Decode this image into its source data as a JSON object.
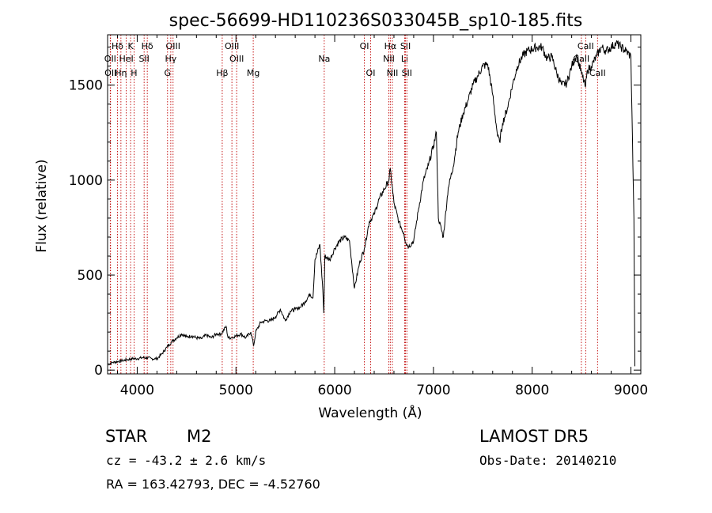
{
  "chart_data": {
    "type": "line",
    "title": "spec-56699-HD110236S033045B_sp10-185.fits",
    "xlabel": "Wavelength (Å)",
    "ylabel": "Flux (relative)",
    "xlim": [
      3700,
      9100
    ],
    "ylim": [
      -20,
      1765
    ],
    "xticks": [
      4000,
      5000,
      6000,
      7000,
      8000,
      9000
    ],
    "yticks": [
      0,
      500,
      1000,
      1500
    ],
    "grid": false,
    "series": [
      {
        "x": [
          3700,
          3750,
          3800,
          3850,
          3900,
          3950,
          4000,
          4050,
          4100,
          4150,
          4200,
          4250,
          4300,
          4350,
          4400,
          4450,
          4500,
          4550,
          4600,
          4650,
          4700,
          4750,
          4800,
          4850,
          4900,
          4920,
          4950,
          5000,
          5050,
          5100,
          5150,
          5180,
          5200,
          5250,
          5300,
          5350,
          5400,
          5450,
          5500,
          5550,
          5600,
          5650,
          5700,
          5750,
          5780,
          5800,
          5850,
          5880,
          5890,
          5900,
          5950,
          6000,
          6050,
          6100,
          6150,
          6200,
          6250,
          6300,
          6350,
          6400,
          6450,
          6500,
          6550,
          6563,
          6600,
          6650,
          6700,
          6720,
          6750,
          6800,
          6850,
          6900,
          6950,
          7000,
          7030,
          7050,
          7100,
          7150,
          7200,
          7250,
          7300,
          7350,
          7400,
          7450,
          7500,
          7550,
          7600,
          7650,
          7670,
          7700,
          7750,
          7800,
          7850,
          7900,
          7950,
          8000,
          8050,
          8100,
          8150,
          8200,
          8250,
          8300,
          8350,
          8400,
          8450,
          8500,
          8540,
          8560,
          8600,
          8650,
          8700,
          8750,
          8800,
          8850,
          8900,
          8950,
          9000,
          9030,
          9040
        ],
        "y": [
          30,
          40,
          45,
          50,
          55,
          60,
          60,
          65,
          65,
          60,
          60,
          85,
          120,
          150,
          170,
          190,
          175,
          180,
          170,
          165,
          185,
          170,
          190,
          190,
          230,
          170,
          170,
          180,
          190,
          170,
          200,
          130,
          200,
          250,
          260,
          260,
          280,
          320,
          260,
          310,
          320,
          330,
          360,
          400,
          380,
          580,
          660,
          420,
          300,
          600,
          580,
          640,
          680,
          700,
          680,
          430,
          560,
          640,
          780,
          820,
          900,
          950,
          1000,
          1060,
          880,
          780,
          720,
          670,
          650,
          680,
          850,
          1000,
          1080,
          1180,
          1250,
          800,
          700,
          960,
          1070,
          1250,
          1350,
          1420,
          1500,
          1550,
          1600,
          1610,
          1450,
          1230,
          1200,
          1300,
          1380,
          1500,
          1600,
          1650,
          1680,
          1690,
          1700,
          1700,
          1640,
          1650,
          1560,
          1500,
          1510,
          1600,
          1660,
          1560,
          1490,
          1580,
          1600,
          1650,
          1700,
          1680,
          1700,
          1720,
          1700,
          1680,
          1650,
          800,
          20
        ]
      }
    ],
    "lines": [
      {
        "label": "Hδ",
        "x": 3800,
        "row": 0
      },
      {
        "label": "K",
        "x": 3933,
        "row": 0
      },
      {
        "label": "Hδ",
        "x": 4102,
        "row": 0
      },
      {
        "label": "OII",
        "x": 3727,
        "row": 1
      },
      {
        "label": "HeI",
        "x": 3889,
        "row": 1
      },
      {
        "label": "SII",
        "x": 4070,
        "row": 1
      },
      {
        "label": "OII",
        "x": 3730,
        "row": 2
      },
      {
        "label": "Hη",
        "x": 3835,
        "row": 2
      },
      {
        "label": "H",
        "x": 3968,
        "row": 2
      },
      {
        "label": "OIII",
        "x": 4363,
        "row": 0
      },
      {
        "label": "Hγ",
        "x": 4340,
        "row": 1
      },
      {
        "label": "G",
        "x": 4307,
        "row": 2
      },
      {
        "label": "OIII",
        "x": 4959,
        "row": 0
      },
      {
        "label": "OIII",
        "x": 5007,
        "row": 1
      },
      {
        "label": "Hβ",
        "x": 4861,
        "row": 2
      },
      {
        "label": "Mg",
        "x": 5175,
        "row": 2
      },
      {
        "label": "Na",
        "x": 5894,
        "row": 1
      },
      {
        "label": "OI",
        "x": 6300,
        "row": 0
      },
      {
        "label": "OI",
        "x": 6364,
        "row": 2
      },
      {
        "label": "Hα",
        "x": 6563,
        "row": 0
      },
      {
        "label": "SII",
        "x": 6717,
        "row": 0
      },
      {
        "label": "NII",
        "x": 6548,
        "row": 1
      },
      {
        "label": "Li",
        "x": 6708,
        "row": 1
      },
      {
        "label": "NII",
        "x": 6584,
        "row": 2
      },
      {
        "label": "SII",
        "x": 6731,
        "row": 2
      },
      {
        "label": "CaII",
        "x": 8542,
        "row": 0
      },
      {
        "label": "CaII",
        "x": 8498,
        "row": 1
      },
      {
        "label": "CaII",
        "x": 8662,
        "row": 2
      }
    ]
  },
  "info": {
    "object_class": "STAR",
    "subclass": "M2",
    "survey": "LAMOST DR5",
    "cz": "cz = -43.2 ± 2.6 km/s",
    "obs_date": "Obs-Date: 20140210",
    "radec": "RA = 163.42793, DEC =  -4.52760"
  }
}
